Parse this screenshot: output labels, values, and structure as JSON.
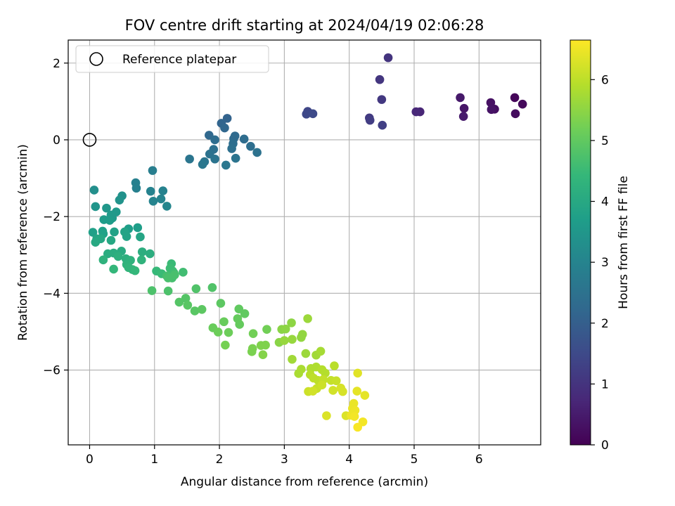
{
  "chart_data": {
    "type": "scatter",
    "title": "FOV centre drift starting at 2024/04/19 02:06:28",
    "xlabel": "Angular distance from reference (arcmin)",
    "ylabel": "Rotation from reference (arcmin)",
    "xlim": [
      -0.33,
      6.95
    ],
    "ylim": [
      -7.95,
      2.6
    ],
    "xticks": [
      0,
      1,
      2,
      3,
      4,
      5,
      6
    ],
    "yticks": [
      -6,
      -4,
      -2,
      0,
      2
    ],
    "grid": true,
    "legend": {
      "position": "top-left",
      "label": "Reference platepar"
    },
    "reference_point": {
      "x": 0,
      "y": 0
    },
    "colorbar": {
      "label": "Hours from first FF file",
      "range": [
        0,
        6.65
      ],
      "ticks": [
        0,
        1,
        2,
        3,
        4,
        5,
        6
      ],
      "colormap": "viridis"
    },
    "points": [
      {
        "x": 6.55,
        "y": 1.1,
        "t": 0.1
      },
      {
        "x": 6.67,
        "y": 0.93,
        "t": 0.15
      },
      {
        "x": 6.56,
        "y": 0.68,
        "t": 0.2
      },
      {
        "x": 6.24,
        "y": 0.8,
        "t": 0.25
      },
      {
        "x": 6.18,
        "y": 0.97,
        "t": 0.3
      },
      {
        "x": 6.19,
        "y": 0.79,
        "t": 0.35
      },
      {
        "x": 5.77,
        "y": 0.82,
        "t": 0.4
      },
      {
        "x": 5.71,
        "y": 1.1,
        "t": 0.45
      },
      {
        "x": 5.76,
        "y": 0.61,
        "t": 0.5
      },
      {
        "x": 5.09,
        "y": 0.73,
        "t": 0.7
      },
      {
        "x": 5.03,
        "y": 0.73,
        "t": 0.75
      },
      {
        "x": 4.6,
        "y": 2.14,
        "t": 1.0
      },
      {
        "x": 4.47,
        "y": 1.57,
        "t": 1.05
      },
      {
        "x": 4.5,
        "y": 1.05,
        "t": 1.1
      },
      {
        "x": 4.31,
        "y": 0.57,
        "t": 1.15
      },
      {
        "x": 4.32,
        "y": 0.51,
        "t": 1.2
      },
      {
        "x": 4.51,
        "y": 0.38,
        "t": 1.25
      },
      {
        "x": 3.36,
        "y": 0.74,
        "t": 1.4
      },
      {
        "x": 3.34,
        "y": 0.67,
        "t": 1.45
      },
      {
        "x": 3.44,
        "y": 0.68,
        "t": 1.5
      },
      {
        "x": 2.12,
        "y": 0.56,
        "t": 2.1
      },
      {
        "x": 2.03,
        "y": 0.43,
        "t": 2.15
      },
      {
        "x": 2.08,
        "y": 0.31,
        "t": 2.2
      },
      {
        "x": 1.84,
        "y": 0.12,
        "t": 2.25
      },
      {
        "x": 2.24,
        "y": 0.1,
        "t": 2.3
      },
      {
        "x": 2.22,
        "y": 0.03,
        "t": 2.3
      },
      {
        "x": 2.38,
        "y": 0.02,
        "t": 2.35
      },
      {
        "x": 1.93,
        "y": 0.0,
        "t": 2.35
      },
      {
        "x": 2.48,
        "y": -0.17,
        "t": 2.4
      },
      {
        "x": 2.21,
        "y": -0.1,
        "t": 2.4
      },
      {
        "x": 2.19,
        "y": -0.23,
        "t": 2.45
      },
      {
        "x": 1.91,
        "y": -0.25,
        "t": 2.45
      },
      {
        "x": 2.58,
        "y": -0.33,
        "t": 2.5
      },
      {
        "x": 1.85,
        "y": -0.37,
        "t": 2.5
      },
      {
        "x": 1.93,
        "y": -0.5,
        "t": 2.55
      },
      {
        "x": 2.25,
        "y": -0.48,
        "t": 2.55
      },
      {
        "x": 1.54,
        "y": -0.5,
        "t": 2.6
      },
      {
        "x": 1.77,
        "y": -0.57,
        "t": 2.6
      },
      {
        "x": 1.74,
        "y": -0.64,
        "t": 2.65
      },
      {
        "x": 2.1,
        "y": -0.66,
        "t": 2.65
      },
      {
        "x": 0.97,
        "y": -0.8,
        "t": 2.85
      },
      {
        "x": 0.71,
        "y": -1.12,
        "t": 2.9
      },
      {
        "x": 0.72,
        "y": -1.26,
        "t": 2.9
      },
      {
        "x": 0.94,
        "y": -1.34,
        "t": 2.95
      },
      {
        "x": 1.13,
        "y": -1.33,
        "t": 2.95
      },
      {
        "x": 1.1,
        "y": -1.54,
        "t": 3.0
      },
      {
        "x": 0.98,
        "y": -1.6,
        "t": 3.0
      },
      {
        "x": 1.19,
        "y": -1.73,
        "t": 3.05
      },
      {
        "x": 0.07,
        "y": -1.31,
        "t": 3.3
      },
      {
        "x": 0.5,
        "y": -1.46,
        "t": 3.35
      },
      {
        "x": 0.46,
        "y": -1.57,
        "t": 3.4
      },
      {
        "x": 0.09,
        "y": -1.74,
        "t": 3.45
      },
      {
        "x": 0.26,
        "y": -1.78,
        "t": 3.5
      },
      {
        "x": 0.41,
        "y": -1.88,
        "t": 3.55
      },
      {
        "x": 0.33,
        "y": -1.96,
        "t": 3.6
      },
      {
        "x": 0.35,
        "y": -2.04,
        "t": 3.6
      },
      {
        "x": 0.22,
        "y": -2.08,
        "t": 3.65
      },
      {
        "x": 0.31,
        "y": -2.1,
        "t": 3.65
      },
      {
        "x": 0.74,
        "y": -2.29,
        "t": 3.7
      },
      {
        "x": 0.6,
        "y": -2.32,
        "t": 3.7
      },
      {
        "x": 0.05,
        "y": -2.41,
        "t": 3.75
      },
      {
        "x": 0.2,
        "y": -2.38,
        "t": 3.75
      },
      {
        "x": 0.21,
        "y": -2.45,
        "t": 3.8
      },
      {
        "x": 0.38,
        "y": -2.4,
        "t": 3.8
      },
      {
        "x": 0.54,
        "y": -2.4,
        "t": 3.85
      },
      {
        "x": 0.57,
        "y": -2.52,
        "t": 3.85
      },
      {
        "x": 0.78,
        "y": -2.53,
        "t": 3.9
      },
      {
        "x": 0.11,
        "y": -2.58,
        "t": 3.9
      },
      {
        "x": 0.17,
        "y": -2.58,
        "t": 3.95
      },
      {
        "x": 0.33,
        "y": -2.62,
        "t": 3.95
      },
      {
        "x": 0.09,
        "y": -2.67,
        "t": 4.0
      },
      {
        "x": 0.49,
        "y": -2.9,
        "t": 4.05
      },
      {
        "x": 0.28,
        "y": -2.97,
        "t": 4.1
      },
      {
        "x": 0.37,
        "y": -2.95,
        "t": 4.1
      },
      {
        "x": 0.81,
        "y": -2.92,
        "t": 4.15
      },
      {
        "x": 0.93,
        "y": -2.97,
        "t": 4.15
      },
      {
        "x": 0.44,
        "y": -3.04,
        "t": 4.2
      },
      {
        "x": 0.56,
        "y": -3.1,
        "t": 4.2
      },
      {
        "x": 0.21,
        "y": -3.13,
        "t": 4.25
      },
      {
        "x": 0.63,
        "y": -3.14,
        "t": 4.25
      },
      {
        "x": 0.8,
        "y": -3.13,
        "t": 4.3
      },
      {
        "x": 0.57,
        "y": -3.25,
        "t": 4.3
      },
      {
        "x": 0.6,
        "y": -3.33,
        "t": 4.35
      },
      {
        "x": 0.66,
        "y": -3.38,
        "t": 4.35
      },
      {
        "x": 0.37,
        "y": -3.37,
        "t": 4.4
      },
      {
        "x": 0.7,
        "y": -3.41,
        "t": 4.4
      },
      {
        "x": 1.03,
        "y": -3.42,
        "t": 4.45
      },
      {
        "x": 1.11,
        "y": -3.49,
        "t": 4.5
      },
      {
        "x": 1.26,
        "y": -3.23,
        "t": 4.5
      },
      {
        "x": 1.24,
        "y": -3.35,
        "t": 4.55
      },
      {
        "x": 1.28,
        "y": -3.42,
        "t": 4.55
      },
      {
        "x": 1.44,
        "y": -3.45,
        "t": 4.6
      },
      {
        "x": 1.3,
        "y": -3.47,
        "t": 4.6
      },
      {
        "x": 1.19,
        "y": -3.55,
        "t": 4.65
      },
      {
        "x": 1.27,
        "y": -3.6,
        "t": 4.65
      },
      {
        "x": 1.31,
        "y": -3.52,
        "t": 4.7
      },
      {
        "x": 1.21,
        "y": -3.6,
        "t": 4.7
      },
      {
        "x": 0.96,
        "y": -3.93,
        "t": 4.75
      },
      {
        "x": 1.21,
        "y": -3.94,
        "t": 4.75
      },
      {
        "x": 1.64,
        "y": -3.88,
        "t": 4.8
      },
      {
        "x": 1.89,
        "y": -3.85,
        "t": 4.8
      },
      {
        "x": 1.48,
        "y": -4.13,
        "t": 4.85
      },
      {
        "x": 1.38,
        "y": -4.23,
        "t": 4.85
      },
      {
        "x": 1.51,
        "y": -4.31,
        "t": 4.9
      },
      {
        "x": 1.62,
        "y": -4.46,
        "t": 4.9
      },
      {
        "x": 1.73,
        "y": -4.42,
        "t": 4.95
      },
      {
        "x": 2.02,
        "y": -4.26,
        "t": 4.95
      },
      {
        "x": 2.3,
        "y": -4.41,
        "t": 5.0
      },
      {
        "x": 2.39,
        "y": -4.53,
        "t": 5.0
      },
      {
        "x": 2.28,
        "y": -4.66,
        "t": 5.05
      },
      {
        "x": 2.31,
        "y": -4.81,
        "t": 5.05
      },
      {
        "x": 2.07,
        "y": -4.74,
        "t": 5.1
      },
      {
        "x": 1.9,
        "y": -4.9,
        "t": 5.1
      },
      {
        "x": 1.98,
        "y": -5.01,
        "t": 5.15
      },
      {
        "x": 2.14,
        "y": -5.02,
        "t": 5.15
      },
      {
        "x": 2.52,
        "y": -5.05,
        "t": 5.2
      },
      {
        "x": 2.73,
        "y": -4.94,
        "t": 5.2
      },
      {
        "x": 2.09,
        "y": -5.35,
        "t": 5.25
      },
      {
        "x": 2.51,
        "y": -5.44,
        "t": 5.3
      },
      {
        "x": 2.5,
        "y": -5.52,
        "t": 5.3
      },
      {
        "x": 2.64,
        "y": -5.36,
        "t": 5.35
      },
      {
        "x": 2.71,
        "y": -5.35,
        "t": 5.35
      },
      {
        "x": 2.67,
        "y": -5.6,
        "t": 5.4
      },
      {
        "x": 2.92,
        "y": -5.28,
        "t": 5.45
      },
      {
        "x": 2.96,
        "y": -4.94,
        "t": 5.45
      },
      {
        "x": 3.02,
        "y": -4.93,
        "t": 5.5
      },
      {
        "x": 3.11,
        "y": -4.77,
        "t": 5.5
      },
      {
        "x": 3.28,
        "y": -5.07,
        "t": 5.55
      },
      {
        "x": 3.26,
        "y": -5.15,
        "t": 5.55
      },
      {
        "x": 3.12,
        "y": -5.2,
        "t": 5.6
      },
      {
        "x": 3.0,
        "y": -5.23,
        "t": 5.6
      },
      {
        "x": 3.36,
        "y": -4.66,
        "t": 5.65
      },
      {
        "x": 3.33,
        "y": -5.57,
        "t": 5.65
      },
      {
        "x": 3.12,
        "y": -5.72,
        "t": 5.7
      },
      {
        "x": 3.49,
        "y": -5.61,
        "t": 5.7
      },
      {
        "x": 3.56,
        "y": -5.51,
        "t": 5.75
      },
      {
        "x": 3.26,
        "y": -5.98,
        "t": 5.8
      },
      {
        "x": 3.22,
        "y": -6.09,
        "t": 5.8
      },
      {
        "x": 3.41,
        "y": -5.96,
        "t": 5.85
      },
      {
        "x": 3.49,
        "y": -5.92,
        "t": 5.85
      },
      {
        "x": 3.58,
        "y": -5.99,
        "t": 5.9
      },
      {
        "x": 3.63,
        "y": -6.08,
        "t": 5.9
      },
      {
        "x": 3.77,
        "y": -5.89,
        "t": 5.95
      },
      {
        "x": 3.4,
        "y": -6.12,
        "t": 5.95
      },
      {
        "x": 3.45,
        "y": -6.21,
        "t": 6.0
      },
      {
        "x": 3.52,
        "y": -6.27,
        "t": 6.0
      },
      {
        "x": 3.6,
        "y": -6.25,
        "t": 6.05
      },
      {
        "x": 3.72,
        "y": -6.27,
        "t": 6.05
      },
      {
        "x": 3.8,
        "y": -6.28,
        "t": 6.1
      },
      {
        "x": 3.5,
        "y": -6.48,
        "t": 6.1
      },
      {
        "x": 3.58,
        "y": -6.39,
        "t": 6.15
      },
      {
        "x": 3.37,
        "y": -6.56,
        "t": 6.15
      },
      {
        "x": 3.44,
        "y": -6.55,
        "t": 6.2
      },
      {
        "x": 3.75,
        "y": -6.53,
        "t": 6.2
      },
      {
        "x": 3.87,
        "y": -6.47,
        "t": 6.25
      },
      {
        "x": 3.9,
        "y": -6.56,
        "t": 6.25
      },
      {
        "x": 3.65,
        "y": -7.19,
        "t": 6.3
      },
      {
        "x": 3.95,
        "y": -7.19,
        "t": 6.3
      },
      {
        "x": 4.13,
        "y": -6.08,
        "t": 6.35
      },
      {
        "x": 4.12,
        "y": -6.55,
        "t": 6.4
      },
      {
        "x": 4.24,
        "y": -6.66,
        "t": 6.4
      },
      {
        "x": 4.07,
        "y": -6.87,
        "t": 6.45
      },
      {
        "x": 4.05,
        "y": -7.0,
        "t": 6.45
      },
      {
        "x": 4.09,
        "y": -7.05,
        "t": 6.5
      },
      {
        "x": 4.03,
        "y": -7.18,
        "t": 6.5
      },
      {
        "x": 4.08,
        "y": -7.21,
        "t": 6.55
      },
      {
        "x": 4.21,
        "y": -7.35,
        "t": 6.55
      },
      {
        "x": 4.13,
        "y": -7.49,
        "t": 6.6
      }
    ]
  }
}
